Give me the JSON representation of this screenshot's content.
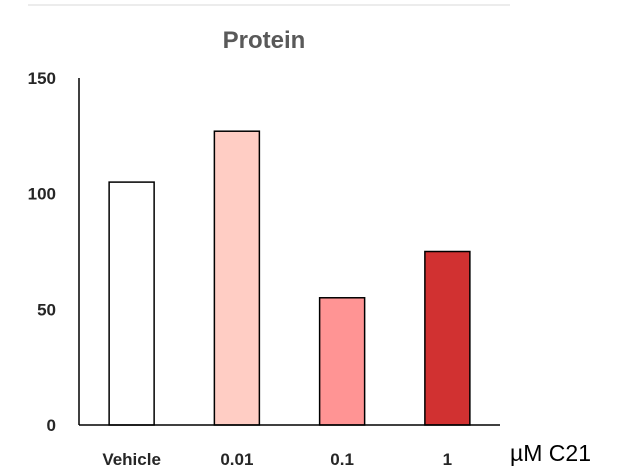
{
  "chart_data": {
    "type": "bar",
    "title": "Protein",
    "categories": [
      "Vehicle",
      "0.01",
      "0.1",
      "1"
    ],
    "values": [
      105,
      127,
      55,
      75
    ],
    "bar_colors": [
      "#ffffff",
      "#ffcdc4",
      "#ff9494",
      "#d13131"
    ],
    "bar_edge_color": "#000000",
    "ylim": [
      0,
      150
    ],
    "yticks": [
      "0",
      "50",
      "100",
      "150"
    ],
    "x_unit_label": "µM C21",
    "grid": false,
    "legend": false
  }
}
